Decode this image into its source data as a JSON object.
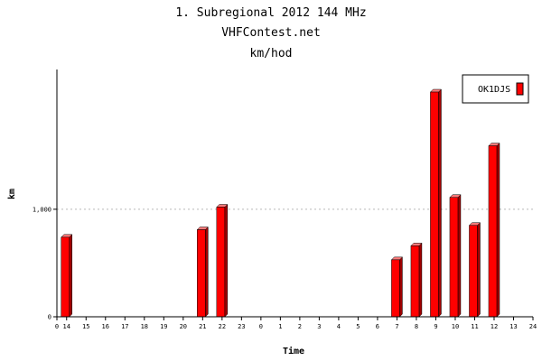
{
  "chart_data": {
    "type": "bar",
    "title_lines": [
      "1. Subregional 2012 144 MHz",
      "VHFContest.net",
      "km/hod"
    ],
    "xlabel": "Time",
    "ylabel": "km",
    "x_axis_start_label": "0",
    "x_axis_end_label": "24",
    "categories": [
      "14",
      "15",
      "16",
      "17",
      "18",
      "19",
      "20",
      "21",
      "22",
      "23",
      "0",
      "1",
      "2",
      "3",
      "4",
      "5",
      "6",
      "7",
      "8",
      "9",
      "10",
      "11",
      "12",
      "13"
    ],
    "y_ticks": [
      {
        "value": 0,
        "label": "0"
      },
      {
        "value": 1000,
        "label": "1,000"
      }
    ],
    "ylim": [
      0,
      2300
    ],
    "grid_y": [
      1000
    ],
    "legend_position": "top-right",
    "series": [
      {
        "name": "OK1DJS",
        "color": "#ff0000",
        "values": [
          740,
          0,
          0,
          0,
          0,
          0,
          0,
          810,
          1020,
          0,
          0,
          0,
          0,
          0,
          0,
          0,
          0,
          530,
          660,
          2090,
          1110,
          850,
          1590,
          0
        ]
      }
    ]
  }
}
